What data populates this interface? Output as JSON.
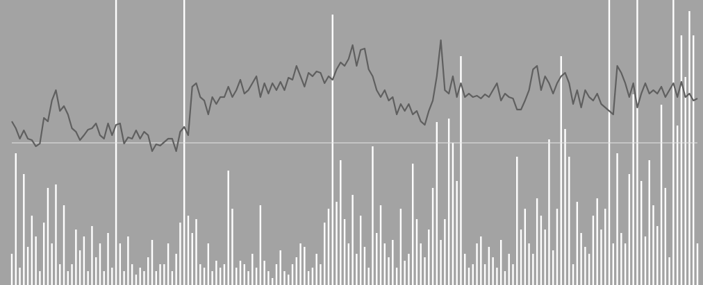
{
  "chart_data": {
    "type": "line",
    "background": "#a3a3a3",
    "ylim": [
      -205,
      206
    ],
    "y2lim": [
      0,
      411
    ],
    "reference_line": 0,
    "reference_color": "#e6e6e6",
    "series": [
      {
        "color": "#ffffff",
        "axis": "y2",
        "type": "bar",
        "values": [
          45,
          190,
          25,
          160,
          55,
          100,
          70,
          20,
          90,
          140,
          60,
          145,
          30,
          115,
          20,
          30,
          80,
          50,
          70,
          20,
          85,
          40,
          60,
          20,
          75,
          25,
          411,
          60,
          20,
          70,
          30,
          15,
          25,
          20,
          40,
          65,
          20,
          30,
          30,
          60,
          20,
          45,
          90,
          411,
          100,
          75,
          95,
          30,
          25,
          60,
          20,
          35,
          25,
          30,
          165,
          110,
          25,
          35,
          30,
          20,
          45,
          25,
          115,
          35,
          20,
          10,
          30,
          50,
          20,
          15,
          30,
          40,
          60,
          55,
          20,
          25,
          45,
          30,
          90,
          110,
          390,
          120,
          180,
          95,
          60,
          130,
          45,
          100,
          55,
          25,
          200,
          75,
          115,
          60,
          40,
          65,
          25,
          110,
          35,
          45,
          175,
          95,
          60,
          40,
          80,
          140,
          235,
          65,
          95,
          240,
          205,
          150,
          330,
          45,
          25,
          30,
          60,
          70,
          30,
          55,
          40,
          25,
          65,
          20,
          45,
          30,
          185,
          80,
          110,
          60,
          45,
          125,
          100,
          80,
          210,
          50,
          110,
          330,
          225,
          185,
          30,
          120,
          75,
          55,
          45,
          100,
          125,
          80,
          110,
          411,
          60,
          190,
          75,
          60,
          160,
          275,
          411,
          150,
          70,
          180,
          115,
          85,
          260,
          140,
          40,
          411,
          230,
          360,
          300,
          395,
          360,
          60
        ]
      },
      {
        "color": "#5f5f5f",
        "type": "line",
        "values": [
          31,
          21,
          6,
          18,
          6,
          4,
          -5,
          -1,
          36,
          31,
          61,
          76,
          46,
          53,
          41,
          21,
          16,
          4,
          11,
          19,
          21,
          28,
          11,
          6,
          28,
          11,
          26,
          28,
          -1,
          8,
          6,
          18,
          6,
          16,
          11,
          -12,
          -2,
          -4,
          1,
          6,
          6,
          -12,
          16,
          23,
          11,
          81,
          86,
          66,
          61,
          41,
          66,
          56,
          66,
          66,
          81,
          66,
          76,
          91,
          71,
          76,
          86,
          96,
          66,
          86,
          71,
          86,
          76,
          88,
          76,
          94,
          91,
          111,
          96,
          81,
          101,
          96,
          103,
          101,
          86,
          96,
          91,
          106,
          116,
          111,
          121,
          141,
          111,
          134,
          136,
          106,
          96,
          76,
          66,
          76,
          61,
          66,
          41,
          56,
          46,
          56,
          41,
          46,
          31,
          26,
          46,
          61,
          96,
          148,
          76,
          71,
          96,
          66,
          86,
          66,
          71,
          66,
          68,
          64,
          70,
          66,
          76,
          86,
          61,
          71,
          66,
          64,
          48,
          48,
          61,
          76,
          106,
          111,
          76,
          96,
          86,
          71,
          86,
          96,
          101,
          86,
          56,
          76,
          51,
          76,
          66,
          61,
          71,
          56,
          51,
          46,
          41,
          111,
          101,
          86,
          66,
          86,
          51,
          71,
          86,
          71,
          76,
          71,
          81,
          66,
          76,
          86,
          66,
          88,
          66,
          71,
          61,
          64
        ]
      }
    ]
  }
}
